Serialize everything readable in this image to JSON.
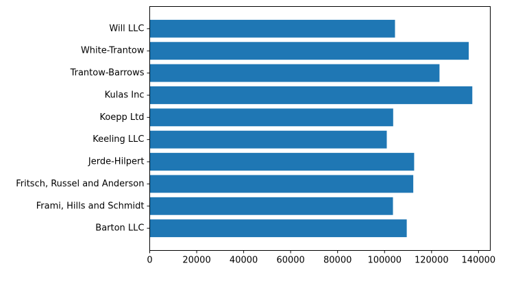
{
  "chart_data": {
    "type": "bar",
    "orientation": "horizontal",
    "categories": [
      "Barton LLC",
      "Frami, Hills and Schmidt",
      "Fritsch, Russel and Anderson",
      "Jerde-Hilpert",
      "Keeling LLC",
      "Koepp Ltd",
      "Kulas Inc",
      "Trantow-Barrows",
      "White-Trantow",
      "Will LLC"
    ],
    "values": [
      109438,
      103569,
      112214,
      112591,
      100934,
      103660,
      137352,
      123381,
      135841,
      104437
    ],
    "xlim": [
      0,
      145000
    ],
    "xticks": [
      0,
      20000,
      40000,
      60000,
      80000,
      100000,
      120000,
      140000
    ],
    "xtick_labels": [
      "0",
      "20000",
      "40000",
      "60000",
      "80000",
      "100000",
      "120000",
      "140000"
    ],
    "title": "",
    "xlabel": "",
    "ylabel": "",
    "grid": false,
    "bar_color": "#1f77b4"
  }
}
